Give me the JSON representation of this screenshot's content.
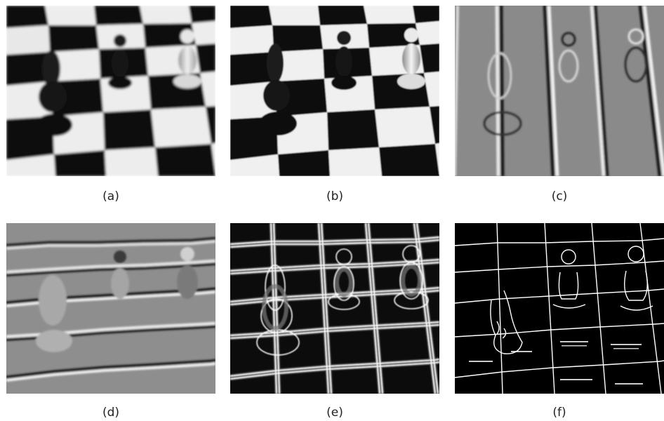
{
  "figure": {
    "panels": [
      {
        "id": "a",
        "caption": "(a)",
        "content": "blurred-chessboard-photo"
      },
      {
        "id": "b",
        "caption": "(b)",
        "content": "deblurred-chessboard-photo"
      },
      {
        "id": "c",
        "caption": "(c)",
        "content": "horizontal-gradient-map"
      },
      {
        "id": "d",
        "caption": "(d)",
        "content": "vertical-gradient-map"
      },
      {
        "id": "e",
        "caption": "(e)",
        "content": "gradient-magnitude-map"
      },
      {
        "id": "f",
        "caption": "(f)",
        "content": "binary-edge-map"
      }
    ]
  }
}
